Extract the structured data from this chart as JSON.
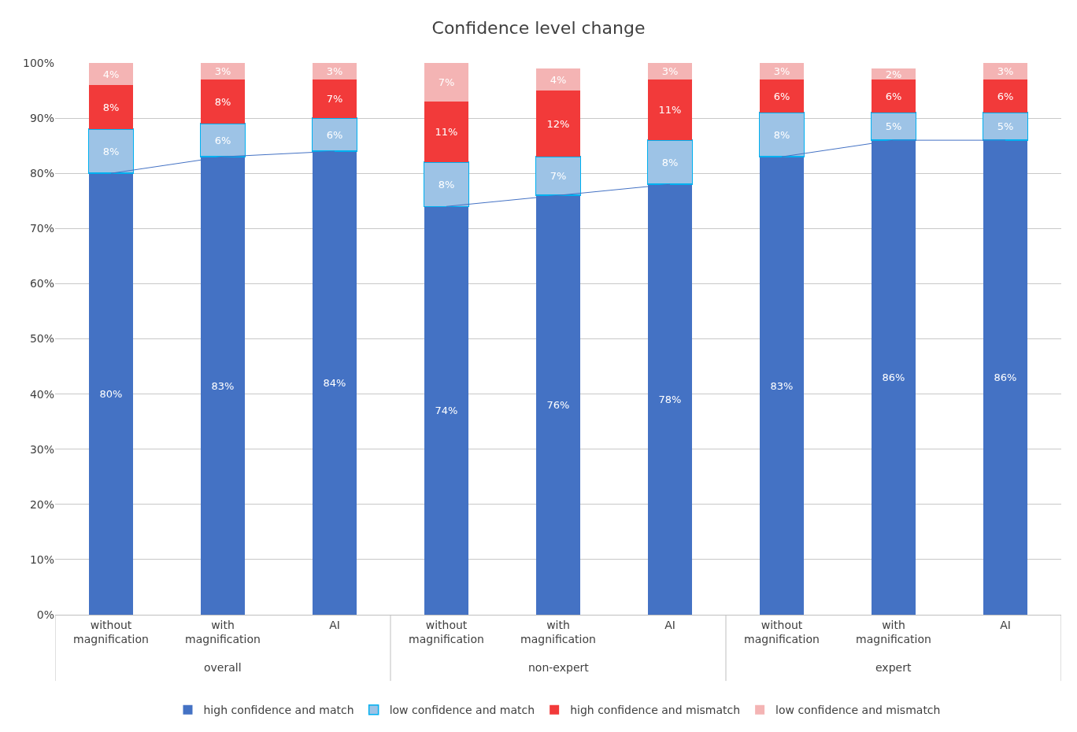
{
  "chart_data": {
    "type": "bar",
    "title": "Confidence level change",
    "stacked": true,
    "grid": "y",
    "legend": "bottom",
    "data_labels": false,
    "categories": [
      "without magnification",
      "with magnification",
      "AI",
      "without magnification",
      "with magnification",
      "AI",
      "without magnification",
      "with magnification",
      "AI"
    ],
    "annotations": [
      "overall",
      "non-expert",
      "expert"
    ],
    "ylim": [
      0,
      100
    ],
    "yticks": [
      {
        "value": 0,
        "label": "0%"
      },
      {
        "value": 10,
        "label": "10%"
      },
      {
        "value": 20,
        "label": "20%"
      },
      {
        "value": 30,
        "label": "30%"
      },
      {
        "value": 40,
        "label": "40%"
      },
      {
        "value": 50,
        "label": "50%"
      },
      {
        "value": 60,
        "label": "60%"
      },
      {
        "value": 70,
        "label": "70%"
      },
      {
        "value": 80,
        "label": "80%"
      },
      {
        "value": 90,
        "label": "90%"
      },
      {
        "value": 100,
        "label": "100%"
      }
    ],
    "series": [
      {
        "name": "high confidence and match",
        "color": "#4472c4",
        "values": [
          80,
          83,
          84,
          74,
          76,
          78,
          83,
          86,
          86
        ],
        "value_labels": [
          "80%",
          "83%",
          "84%",
          "74%",
          "76%",
          "78%",
          "83%",
          "86%",
          "86%"
        ]
      },
      {
        "name": "low confidence and match",
        "color": "#9dc3e6",
        "values": [
          8,
          6,
          6,
          8,
          7,
          8,
          8,
          5,
          5
        ],
        "value_labels": [
          "8%",
          "6%",
          "6%",
          "8%",
          "7%",
          "8%",
          "8%",
          "5%",
          "5%"
        ]
      },
      {
        "name": "high confidence and mismatch",
        "color": "#f23a3a",
        "values": [
          8,
          8,
          7,
          11,
          12,
          11,
          6,
          6,
          6
        ],
        "value_labels": [
          "8%",
          "8%",
          "7%",
          "11%",
          "12%",
          "11%",
          "6%",
          "6%",
          "6%"
        ]
      },
      {
        "name": "low confidence and mismatch",
        "color": "#f4b4b4",
        "values": [
          4,
          3,
          3,
          7,
          4,
          3,
          3,
          2,
          3
        ],
        "value_labels": [
          "4%",
          "3%",
          "3%",
          "7%",
          "4%",
          "3%",
          "3%",
          "2%",
          "3%"
        ]
      },
      {
        "type": "line",
        "color": "#4472c4",
        "values": [
          80,
          83,
          84,
          null,
          null,
          null,
          null,
          null,
          null
        ]
      },
      {
        "type": "line",
        "color": "#4472c4",
        "values": [
          null,
          null,
          null,
          74,
          76,
          78,
          null,
          null,
          null
        ]
      },
      {
        "type": "line",
        "color": "#4472c4",
        "values": [
          null,
          null,
          null,
          null,
          null,
          null,
          83,
          86,
          86
        ]
      }
    ]
  }
}
